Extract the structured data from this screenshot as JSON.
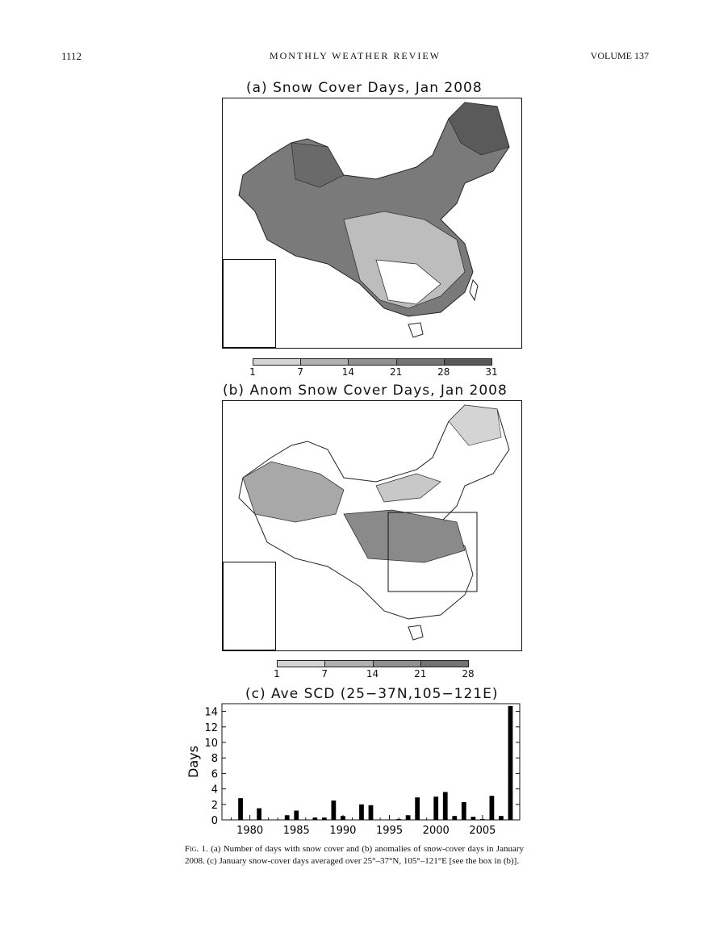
{
  "header": {
    "page_number": "1112",
    "journal": "MONTHLY WEATHER REVIEW",
    "volume": "VOLUME 137"
  },
  "panel_a": {
    "title": "(a) Snow Cover Days, Jan 2008",
    "colorbar_ticks": [
      "1",
      "7",
      "14",
      "21",
      "28",
      "31"
    ],
    "colorbar_colors": [
      "#d4d4d4",
      "#b0b0b0",
      "#909090",
      "#737373",
      "#595959"
    ]
  },
  "panel_b": {
    "title": "(b) Anom Snow Cover Days, Jan 2008",
    "colorbar_ticks": [
      "1",
      "7",
      "14",
      "21",
      "28"
    ],
    "colorbar_colors": [
      "#d4d4d4",
      "#b0b0b0",
      "#909090",
      "#737373"
    ]
  },
  "panel_c": {
    "title": "(c) Ave SCD (25−37N,105−121E)"
  },
  "chart_data": {
    "type": "bar",
    "title": "(c) Ave SCD (25−37N,105−121E)",
    "xlabel": "",
    "ylabel": "Days",
    "xlim": [
      1977,
      2009
    ],
    "ylim": [
      0,
      15
    ],
    "x_ticks": [
      1980,
      1985,
      1990,
      1995,
      2000,
      2005
    ],
    "y_ticks": [
      0,
      2,
      4,
      6,
      8,
      10,
      12,
      14
    ],
    "x": [
      1979,
      1980,
      1981,
      1982,
      1983,
      1984,
      1985,
      1986,
      1987,
      1988,
      1989,
      1990,
      1991,
      1992,
      1993,
      1994,
      1995,
      1996,
      1997,
      1998,
      1999,
      2000,
      2001,
      2002,
      2003,
      2004,
      2005,
      2006,
      2007,
      2008
    ],
    "values": [
      2.8,
      0,
      1.5,
      0,
      0,
      0.6,
      1.2,
      0,
      0.3,
      0.3,
      2.5,
      0.5,
      0,
      2.0,
      1.9,
      0,
      0,
      0.1,
      0.6,
      2.9,
      0,
      3.0,
      3.6,
      0.5,
      2.3,
      0.4,
      0.1,
      3.1,
      0.5,
      14.7
    ]
  },
  "caption": {
    "fig_label": "Fig. 1.",
    "text": "(a) Number of days with snow cover and (b) anomalies of snow-cover days in January 2008. (c) January snow-cover days averaged over 25°–37°N, 105°–121°E [see the box in (b)]."
  }
}
